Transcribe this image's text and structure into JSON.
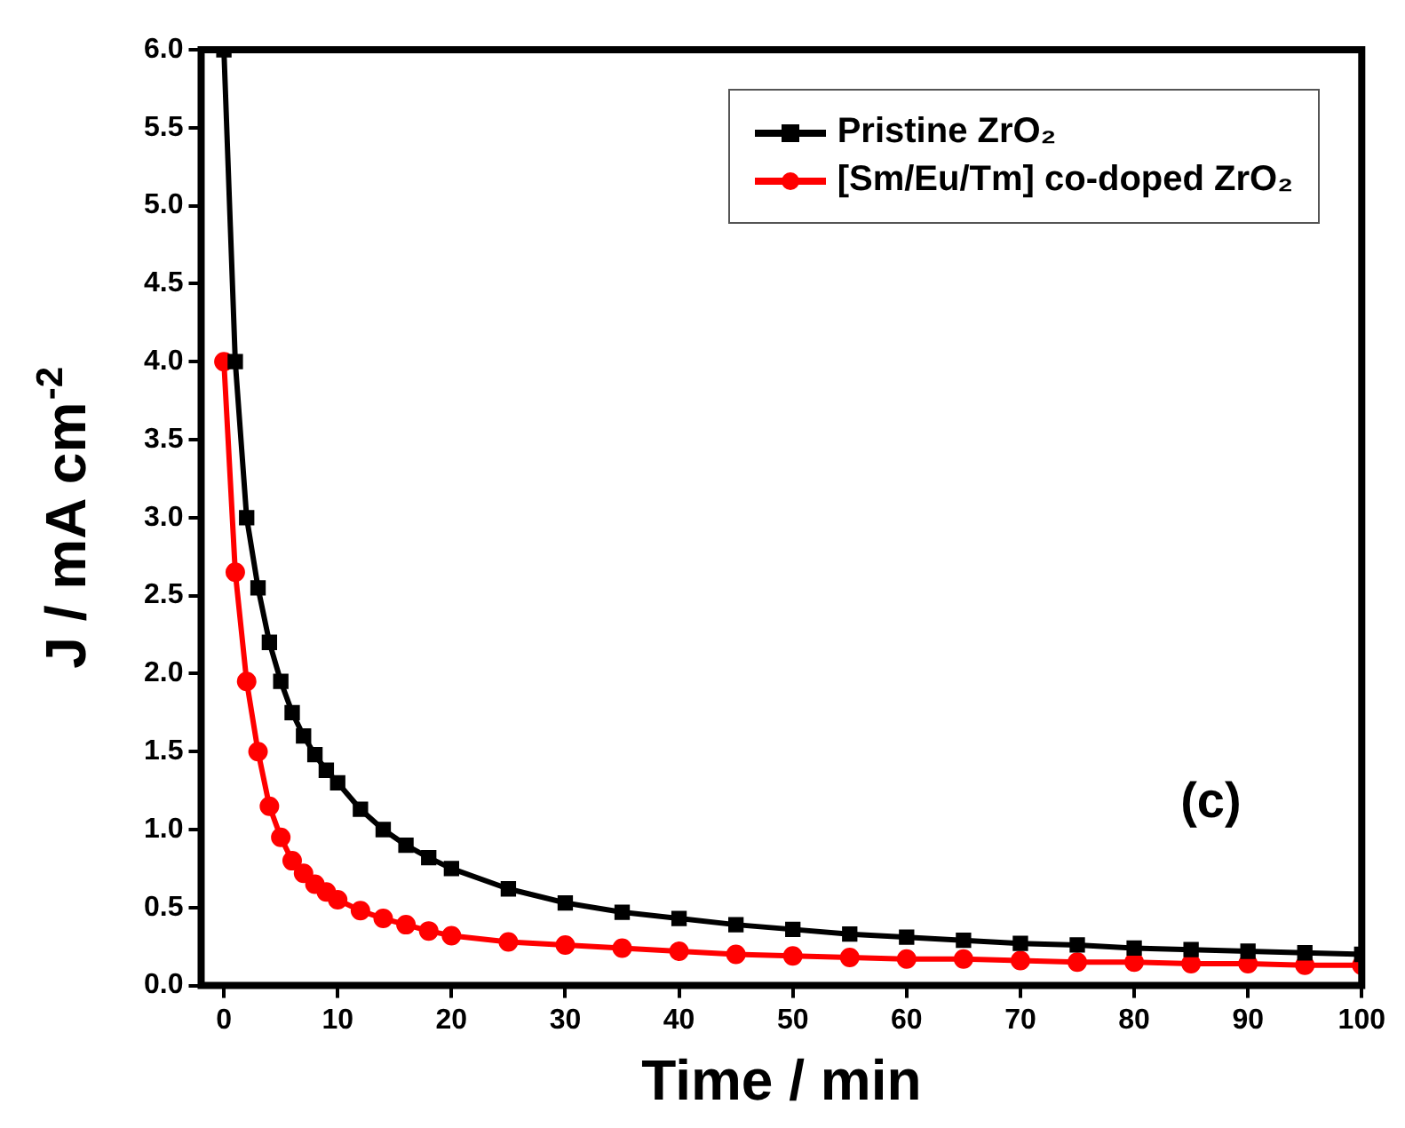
{
  "chart_data": {
    "type": "line",
    "xlabel": "Time / min",
    "ylabel": "J / mA cm$^{-2}$",
    "annotations": [
      "(c)"
    ],
    "xlim": [
      -2,
      100
    ],
    "xticks": [
      0,
      10,
      20,
      30,
      40,
      50,
      60,
      70,
      80,
      90,
      100
    ],
    "ylim": [
      0,
      6
    ],
    "yticks": [
      {
        "value": 0,
        "label": "0.0"
      },
      {
        "value": 0.5,
        "label": "0.5"
      },
      {
        "value": 1,
        "label": "1.0"
      },
      {
        "value": 1.5,
        "label": "1.5"
      },
      {
        "value": 2,
        "label": "2.0"
      },
      {
        "value": 2.5,
        "label": "2.5"
      },
      {
        "value": 3,
        "label": "3.0"
      },
      {
        "value": 3.5,
        "label": "3.5"
      },
      {
        "value": 4,
        "label": "4.0"
      },
      {
        "value": 4.5,
        "label": "4.5"
      },
      {
        "value": 5,
        "label": "5.0"
      },
      {
        "value": 5.5,
        "label": "5.5"
      },
      {
        "value": 6,
        "label": "6.0"
      }
    ],
    "grid": false,
    "legend": "top right",
    "line_style": "solid",
    "x": [
      0,
      1,
      2,
      3,
      4,
      5,
      6,
      7,
      8,
      9,
      10,
      12,
      14,
      16,
      18,
      20,
      25,
      30,
      35,
      40,
      45,
      50,
      55,
      60,
      65,
      70,
      75,
      80,
      85,
      90,
      95,
      100
    ],
    "series": [
      {
        "name": "Pristine ZrO₂",
        "color": "#000000",
        "marker": "square",
        "values": [
          6.0,
          4.0,
          3.0,
          2.55,
          2.2,
          1.95,
          1.75,
          1.6,
          1.48,
          1.38,
          1.3,
          1.13,
          1.0,
          0.9,
          0.82,
          0.75,
          0.62,
          0.53,
          0.47,
          0.43,
          0.39,
          0.36,
          0.33,
          0.31,
          0.29,
          0.27,
          0.26,
          0.24,
          0.23,
          0.22,
          0.21,
          0.2
        ]
      },
      {
        "name": "[Sm/Eu/Tm] co-doped ZrO₂",
        "color": "#ff0000",
        "marker": "circle",
        "values": [
          4.0,
          2.65,
          1.95,
          1.5,
          1.15,
          0.95,
          0.8,
          0.72,
          0.65,
          0.6,
          0.55,
          0.48,
          0.43,
          0.39,
          0.35,
          0.32,
          0.28,
          0.26,
          0.24,
          0.22,
          0.2,
          0.19,
          0.18,
          0.17,
          0.17,
          0.16,
          0.15,
          0.15,
          0.14,
          0.14,
          0.13,
          0.13
        ]
      }
    ]
  }
}
